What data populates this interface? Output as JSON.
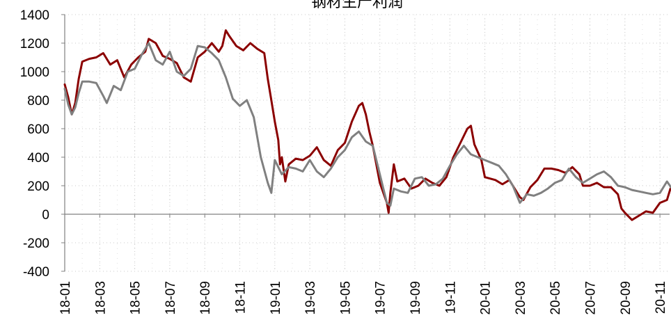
{
  "chart_data": {
    "type": "line",
    "title": "钢材生产利润",
    "xlabel": "",
    "ylabel": "",
    "ylim": [
      -400,
      1400
    ],
    "yticks": [
      1400,
      1200,
      1000,
      800,
      600,
      400,
      200,
      0,
      -200,
      -400
    ],
    "grid": "dotted",
    "legend": "none",
    "x_tick_labels": [
      "18-01",
      "18-03",
      "18-05",
      "18-07",
      "18-09",
      "18-11",
      "19-01",
      "19-03",
      "19-05",
      "19-07",
      "19-09",
      "19-11",
      "20-01",
      "20-03",
      "20-05",
      "20-07",
      "20-09",
      "20-11"
    ],
    "series": [
      {
        "color": "#8B0000",
        "points": [
          [
            0,
            910
          ],
          [
            0.1,
            820
          ],
          [
            0.2,
            700
          ],
          [
            0.3,
            780
          ],
          [
            0.4,
            950
          ],
          [
            0.5,
            1070
          ],
          [
            0.7,
            1090
          ],
          [
            0.9,
            1100
          ],
          [
            1.1,
            1130
          ],
          [
            1.3,
            1050
          ],
          [
            1.5,
            1080
          ],
          [
            1.7,
            960
          ],
          [
            1.9,
            1050
          ],
          [
            2.1,
            1100
          ],
          [
            2.3,
            1140
          ],
          [
            2.4,
            1230
          ],
          [
            2.6,
            1200
          ],
          [
            2.8,
            1110
          ],
          [
            3.0,
            1090
          ],
          [
            3.2,
            1060
          ],
          [
            3.4,
            960
          ],
          [
            3.6,
            930
          ],
          [
            3.8,
            1100
          ],
          [
            4.0,
            1140
          ],
          [
            4.2,
            1200
          ],
          [
            4.4,
            1140
          ],
          [
            4.5,
            1180
          ],
          [
            4.6,
            1290
          ],
          [
            4.7,
            1250
          ],
          [
            4.9,
            1180
          ],
          [
            5.1,
            1150
          ],
          [
            5.3,
            1200
          ],
          [
            5.5,
            1160
          ],
          [
            5.7,
            1130
          ],
          [
            5.8,
            950
          ],
          [
            5.9,
            800
          ],
          [
            6.0,
            650
          ],
          [
            6.1,
            520
          ],
          [
            6.15,
            350
          ],
          [
            6.2,
            400
          ],
          [
            6.3,
            230
          ],
          [
            6.4,
            350
          ],
          [
            6.6,
            390
          ],
          [
            6.8,
            380
          ],
          [
            7.0,
            410
          ],
          [
            7.2,
            470
          ],
          [
            7.4,
            380
          ],
          [
            7.6,
            340
          ],
          [
            7.8,
            450
          ],
          [
            8.0,
            500
          ],
          [
            8.2,
            650
          ],
          [
            8.4,
            760
          ],
          [
            8.5,
            780
          ],
          [
            8.6,
            700
          ],
          [
            8.7,
            580
          ],
          [
            8.8,
            480
          ],
          [
            9.0,
            220
          ],
          [
            9.2,
            80
          ],
          [
            9.25,
            10
          ],
          [
            9.3,
            150
          ],
          [
            9.4,
            350
          ],
          [
            9.5,
            230
          ],
          [
            9.7,
            250
          ],
          [
            9.9,
            180
          ],
          [
            10.1,
            200
          ],
          [
            10.3,
            250
          ],
          [
            10.5,
            220
          ],
          [
            10.7,
            200
          ],
          [
            10.9,
            260
          ],
          [
            11.1,
            400
          ],
          [
            11.3,
            500
          ],
          [
            11.5,
            600
          ],
          [
            11.6,
            620
          ],
          [
            11.7,
            490
          ],
          [
            11.9,
            380
          ],
          [
            12.0,
            260
          ],
          [
            12.3,
            240
          ],
          [
            12.5,
            210
          ],
          [
            12.7,
            240
          ],
          [
            12.8,
            200
          ],
          [
            13.0,
            120
          ],
          [
            13.1,
            100
          ],
          [
            13.3,
            190
          ],
          [
            13.5,
            240
          ],
          [
            13.7,
            320
          ],
          [
            13.9,
            320
          ],
          [
            14.1,
            310
          ],
          [
            14.3,
            290
          ],
          [
            14.5,
            330
          ],
          [
            14.7,
            280
          ],
          [
            14.8,
            200
          ],
          [
            15.0,
            200
          ],
          [
            15.2,
            220
          ],
          [
            15.4,
            190
          ],
          [
            15.6,
            190
          ],
          [
            15.8,
            140
          ],
          [
            15.9,
            40
          ],
          [
            16.0,
            10
          ],
          [
            16.2,
            -40
          ],
          [
            16.4,
            -10
          ],
          [
            16.6,
            20
          ],
          [
            16.8,
            10
          ],
          [
            17.0,
            80
          ],
          [
            17.2,
            100
          ],
          [
            17.3,
            180
          ],
          [
            17.4,
            160
          ],
          [
            17.5,
            70
          ]
        ]
      },
      {
        "color": "#808080",
        "points": [
          [
            0,
            880
          ],
          [
            0.1,
            770
          ],
          [
            0.2,
            700
          ],
          [
            0.3,
            750
          ],
          [
            0.4,
            850
          ],
          [
            0.5,
            930
          ],
          [
            0.7,
            930
          ],
          [
            0.9,
            920
          ],
          [
            1.1,
            830
          ],
          [
            1.2,
            780
          ],
          [
            1.4,
            900
          ],
          [
            1.6,
            870
          ],
          [
            1.8,
            1000
          ],
          [
            2.0,
            1020
          ],
          [
            2.2,
            1120
          ],
          [
            2.4,
            1200
          ],
          [
            2.6,
            1080
          ],
          [
            2.8,
            1050
          ],
          [
            3.0,
            1140
          ],
          [
            3.2,
            1000
          ],
          [
            3.4,
            970
          ],
          [
            3.6,
            1020
          ],
          [
            3.8,
            1180
          ],
          [
            4.0,
            1170
          ],
          [
            4.2,
            1130
          ],
          [
            4.4,
            1080
          ],
          [
            4.6,
            960
          ],
          [
            4.8,
            810
          ],
          [
            5.0,
            760
          ],
          [
            5.2,
            800
          ],
          [
            5.4,
            680
          ],
          [
            5.6,
            400
          ],
          [
            5.8,
            220
          ],
          [
            5.9,
            150
          ],
          [
            6.0,
            380
          ],
          [
            6.2,
            280
          ],
          [
            6.4,
            330
          ],
          [
            6.6,
            320
          ],
          [
            6.8,
            300
          ],
          [
            7.0,
            380
          ],
          [
            7.2,
            300
          ],
          [
            7.4,
            260
          ],
          [
            7.6,
            320
          ],
          [
            7.8,
            400
          ],
          [
            8.0,
            450
          ],
          [
            8.2,
            540
          ],
          [
            8.4,
            580
          ],
          [
            8.6,
            510
          ],
          [
            8.8,
            480
          ],
          [
            9.0,
            280
          ],
          [
            9.2,
            80
          ],
          [
            9.3,
            60
          ],
          [
            9.4,
            180
          ],
          [
            9.6,
            160
          ],
          [
            9.8,
            150
          ],
          [
            10.0,
            250
          ],
          [
            10.2,
            260
          ],
          [
            10.4,
            200
          ],
          [
            10.6,
            210
          ],
          [
            10.8,
            250
          ],
          [
            11.0,
            340
          ],
          [
            11.2,
            420
          ],
          [
            11.4,
            480
          ],
          [
            11.6,
            420
          ],
          [
            11.8,
            400
          ],
          [
            12.0,
            380
          ],
          [
            12.2,
            360
          ],
          [
            12.4,
            340
          ],
          [
            12.6,
            280
          ],
          [
            12.8,
            200
          ],
          [
            13.0,
            80
          ],
          [
            13.2,
            140
          ],
          [
            13.4,
            130
          ],
          [
            13.6,
            150
          ],
          [
            13.8,
            180
          ],
          [
            14.0,
            220
          ],
          [
            14.2,
            240
          ],
          [
            14.4,
            320
          ],
          [
            14.6,
            260
          ],
          [
            14.8,
            220
          ],
          [
            15.0,
            250
          ],
          [
            15.2,
            280
          ],
          [
            15.4,
            300
          ],
          [
            15.6,
            260
          ],
          [
            15.8,
            200
          ],
          [
            16.0,
            190
          ],
          [
            16.2,
            170
          ],
          [
            16.4,
            160
          ],
          [
            16.6,
            150
          ],
          [
            16.8,
            140
          ],
          [
            17.0,
            150
          ],
          [
            17.2,
            230
          ],
          [
            17.4,
            160
          ],
          [
            17.5,
            170
          ]
        ]
      }
    ]
  }
}
